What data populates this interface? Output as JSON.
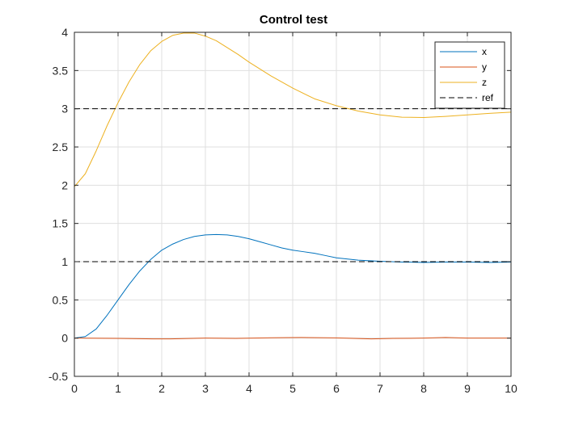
{
  "chart_data": {
    "type": "line",
    "title": "Control test",
    "xlabel": "",
    "ylabel": "",
    "xlim": [
      0,
      10
    ],
    "ylim": [
      -0.5,
      4
    ],
    "xticks": [
      0,
      1,
      2,
      3,
      4,
      5,
      6,
      7,
      8,
      9,
      10
    ],
    "yticks": [
      -0.5,
      0,
      0.5,
      1,
      1.5,
      2,
      2.5,
      3,
      3.5,
      4
    ],
    "xtick_labels": [
      "0",
      "1",
      "2",
      "3",
      "4",
      "5",
      "6",
      "7",
      "8",
      "9",
      "10"
    ],
    "ytick_labels": [
      "-0.5",
      "0",
      "0.5",
      "1",
      "1.5",
      "2",
      "2.5",
      "3",
      "3.5",
      "4"
    ],
    "grid": true,
    "legend_position": "top-right",
    "series": [
      {
        "name": "x",
        "color": "#0072BD",
        "style": "solid",
        "points": [
          [
            0,
            0
          ],
          [
            0.25,
            0.02
          ],
          [
            0.5,
            0.12
          ],
          [
            0.75,
            0.3
          ],
          [
            1,
            0.5
          ],
          [
            1.25,
            0.7
          ],
          [
            1.5,
            0.88
          ],
          [
            1.75,
            1.03
          ],
          [
            2,
            1.15
          ],
          [
            2.25,
            1.23
          ],
          [
            2.5,
            1.29
          ],
          [
            2.75,
            1.33
          ],
          [
            3,
            1.35
          ],
          [
            3.25,
            1.355
          ],
          [
            3.5,
            1.35
          ],
          [
            3.75,
            1.33
          ],
          [
            4,
            1.3
          ],
          [
            4.25,
            1.26
          ],
          [
            4.5,
            1.22
          ],
          [
            4.75,
            1.18
          ],
          [
            5,
            1.15
          ],
          [
            5.25,
            1.13
          ],
          [
            5.5,
            1.11
          ],
          [
            5.75,
            1.08
          ],
          [
            6,
            1.05
          ],
          [
            6.5,
            1.02
          ],
          [
            7,
            1.005
          ],
          [
            7.5,
            0.995
          ],
          [
            8,
            0.99
          ],
          [
            8.5,
            0.995
          ],
          [
            9,
            0.995
          ],
          [
            9.5,
            0.99
          ],
          [
            10,
            0.995
          ]
        ]
      },
      {
        "name": "y",
        "color": "#D95319",
        "style": "solid",
        "points": [
          [
            0,
            0
          ],
          [
            1,
            -0.003
          ],
          [
            1.8,
            -0.01
          ],
          [
            2.2,
            -0.01
          ],
          [
            3,
            0
          ],
          [
            3.7,
            -0.004
          ],
          [
            4.5,
            0.004
          ],
          [
            5.2,
            0.008
          ],
          [
            6,
            0.003
          ],
          [
            6.8,
            -0.01
          ],
          [
            7.3,
            -0.004
          ],
          [
            8,
            0
          ],
          [
            8.5,
            0.008
          ],
          [
            9,
            0
          ],
          [
            10,
            0
          ]
        ]
      },
      {
        "name": "z",
        "color": "#EDB120",
        "style": "solid",
        "points": [
          [
            0,
            1.98
          ],
          [
            0.25,
            2.15
          ],
          [
            0.5,
            2.45
          ],
          [
            0.75,
            2.78
          ],
          [
            1,
            3.08
          ],
          [
            1.25,
            3.35
          ],
          [
            1.5,
            3.58
          ],
          [
            1.75,
            3.76
          ],
          [
            2,
            3.88
          ],
          [
            2.25,
            3.96
          ],
          [
            2.5,
            3.99
          ],
          [
            2.75,
            3.99
          ],
          [
            3,
            3.95
          ],
          [
            3.25,
            3.89
          ],
          [
            3.5,
            3.8
          ],
          [
            3.75,
            3.71
          ],
          [
            4,
            3.61
          ],
          [
            4.5,
            3.43
          ],
          [
            5,
            3.27
          ],
          [
            5.5,
            3.13
          ],
          [
            6,
            3.04
          ],
          [
            6.5,
            2.97
          ],
          [
            7,
            2.92
          ],
          [
            7.5,
            2.89
          ],
          [
            8,
            2.885
          ],
          [
            8.5,
            2.9
          ],
          [
            9,
            2.92
          ],
          [
            9.5,
            2.94
          ],
          [
            10,
            2.955
          ]
        ]
      },
      {
        "name": "ref",
        "color": "#000000",
        "style": "dashed",
        "points": [
          [
            0,
            3
          ],
          [
            10,
            3
          ]
        ]
      },
      {
        "name": "ref",
        "color": "#000000",
        "style": "dashed",
        "points": [
          [
            0,
            1
          ],
          [
            10,
            1
          ]
        ],
        "in_legend": false
      }
    ]
  }
}
